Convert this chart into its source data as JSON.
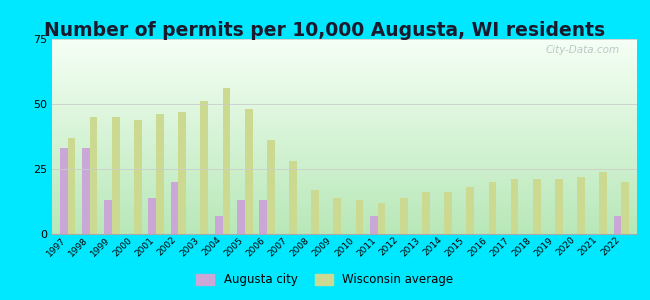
{
  "title": "Number of permits per 10,000 Augusta, WI residents",
  "years": [
    1997,
    1998,
    1999,
    2000,
    2001,
    2002,
    2003,
    2004,
    2005,
    2006,
    2007,
    2008,
    2009,
    2010,
    2011,
    2012,
    2013,
    2014,
    2015,
    2016,
    2017,
    2018,
    2019,
    2020,
    2021,
    2022
  ],
  "augusta": [
    33,
    33,
    13,
    0,
    14,
    20,
    0,
    7,
    13,
    13,
    0,
    0,
    0,
    0,
    7,
    0,
    0,
    0,
    0,
    0,
    0,
    0,
    0,
    0,
    0,
    7
  ],
  "wisconsin": [
    37,
    45,
    45,
    44,
    46,
    47,
    51,
    56,
    48,
    36,
    28,
    17,
    14,
    13,
    12,
    14,
    16,
    16,
    18,
    20,
    21,
    21,
    21,
    22,
    24,
    20
  ],
  "augusta_color": "#c9a8d8",
  "wisconsin_color": "#ccd990",
  "background_top": "#f0f8f0",
  "background_bottom": "#c8eec8",
  "outer_background": "#00e8ff",
  "ylim": [
    0,
    75
  ],
  "yticks": [
    0,
    25,
    50,
    75
  ],
  "legend_augusta": "Augusta city",
  "legend_wisconsin": "Wisconsin average",
  "bar_width": 0.35,
  "title_fontsize": 13.5
}
